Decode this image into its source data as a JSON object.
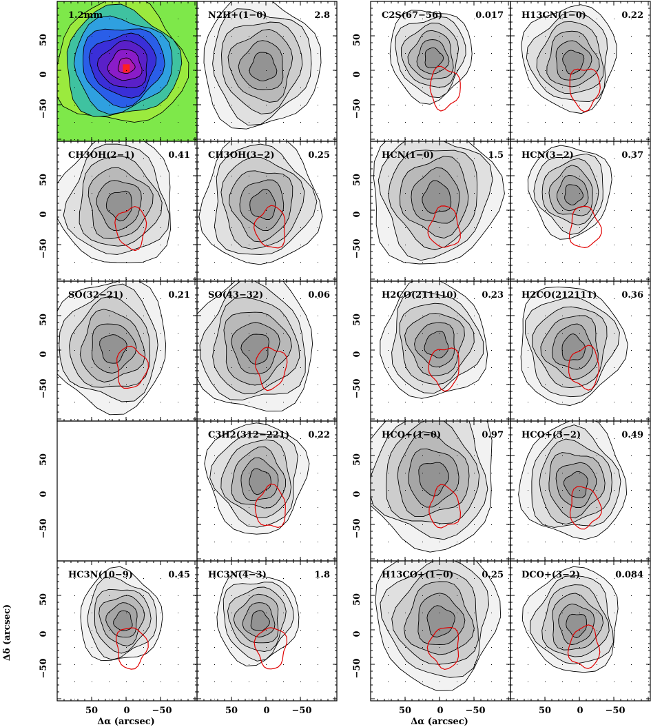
{
  "axes": {
    "xlabel": "Δα (arcsec)",
    "ylabel": "Δδ (arcsec)",
    "xticks": [
      "50",
      "0",
      "−50"
    ],
    "yticks": [
      "50",
      "0",
      "−50"
    ]
  },
  "colors": {
    "contour": "#000000",
    "overlay": "#e00000"
  },
  "panels": [
    {
      "id": "mm12",
      "title": "1.2mm",
      "peak": "",
      "col": 0,
      "row": 0,
      "style": "color",
      "scale": 1.0,
      "dx": -10,
      "dy": -12,
      "overlay": false
    },
    {
      "id": "n2h",
      "title": "N2H+(1−0)",
      "peak": "2.8",
      "col": 1,
      "row": 0,
      "style": "gray",
      "scale": 1.0,
      "dx": -10,
      "dy": -12,
      "overlay": false
    },
    {
      "id": "c2s",
      "title": "C2S(67−56)",
      "peak": "0.017",
      "col": 2,
      "row": 0,
      "style": "gray",
      "scale": 0.7,
      "dx": -15,
      "dy": -25,
      "overlay": true
    },
    {
      "id": "h13cn",
      "title": "H13CN(1−0)",
      "peak": "0.22",
      "col": 3,
      "row": 0,
      "style": "gray",
      "scale": 0.8,
      "dx": -15,
      "dy": -20,
      "overlay": true
    },
    {
      "id": "ch3oh21",
      "title": "CH3OH(2−1)",
      "peak": "0.41",
      "col": 0,
      "row": 1,
      "style": "gray",
      "scale": 1.0,
      "dx": -15,
      "dy": -15,
      "overlay": true
    },
    {
      "id": "ch3oh32",
      "title": "CH3OH(3−2)",
      "peak": "0.25",
      "col": 1,
      "row": 1,
      "style": "gray",
      "scale": 1.0,
      "dx": -10,
      "dy": -15,
      "overlay": true
    },
    {
      "id": "hcn10",
      "title": "HCN(1−0)",
      "peak": "1.5",
      "col": 2,
      "row": 1,
      "style": "gray",
      "scale": 1.1,
      "dx": -10,
      "dy": -25,
      "overlay": true
    },
    {
      "id": "hcn32",
      "title": "HCN(3−2)",
      "peak": "0.37",
      "col": 3,
      "row": 1,
      "style": "gray",
      "scale": 0.7,
      "dx": -15,
      "dy": -30,
      "overlay": true
    },
    {
      "id": "so3221",
      "title": "SO(32−21)",
      "peak": "0.21",
      "col": 0,
      "row": 2,
      "style": "gray",
      "scale": 1.0,
      "dx": -25,
      "dy": -10,
      "overlay": true
    },
    {
      "id": "so4332",
      "title": "SO(43−32)",
      "peak": "0.06",
      "col": 1,
      "row": 2,
      "style": "gray",
      "scale": 1.05,
      "dx": -20,
      "dy": -10,
      "overlay": true
    },
    {
      "id": "h2co211",
      "title": "H2CO(211110)",
      "peak": "0.23",
      "col": 2,
      "row": 2,
      "style": "gray",
      "scale": 0.9,
      "dx": -10,
      "dy": -15,
      "overlay": true
    },
    {
      "id": "h2co212",
      "title": "H2CO(212111)",
      "peak": "0.36",
      "col": 3,
      "row": 2,
      "style": "gray",
      "scale": 0.9,
      "dx": -15,
      "dy": -10,
      "overlay": true
    },
    {
      "id": "c3h2",
      "title": "C3H2(312−221)",
      "peak": "0.22",
      "col": 1,
      "row": 3,
      "style": "gray",
      "scale": 0.85,
      "dx": -15,
      "dy": -20,
      "overlay": true
    },
    {
      "id": "hco10",
      "title": "HCO+(1−0)",
      "peak": "0.97",
      "col": 2,
      "row": 3,
      "style": "gray",
      "scale": 1.15,
      "dx": -15,
      "dy": -25,
      "overlay": true
    },
    {
      "id": "hco32",
      "title": "HCO+(3−2)",
      "peak": "0.49",
      "col": 3,
      "row": 3,
      "style": "gray",
      "scale": 0.9,
      "dx": -10,
      "dy": -15,
      "overlay": true
    },
    {
      "id": "hc3n109",
      "title": "HC3N(10−9)",
      "peak": "0.45",
      "col": 0,
      "row": 4,
      "style": "gray",
      "scale": 0.7,
      "dx": -10,
      "dy": -20,
      "overlay": true
    },
    {
      "id": "hc3n43",
      "title": "HC3N(4−3)",
      "peak": "1.8",
      "col": 1,
      "row": 4,
      "style": "gray",
      "scale": 0.7,
      "dx": -15,
      "dy": -20,
      "overlay": true
    },
    {
      "id": "h13co",
      "title": "H13CO+(1−0)",
      "peak": "0.25",
      "col": 2,
      "row": 4,
      "style": "gray",
      "scale": 1.05,
      "dx": -5,
      "dy": -20,
      "overlay": true
    },
    {
      "id": "dco32",
      "title": "DCO+(3−2)",
      "peak": "0.084",
      "col": 3,
      "row": 4,
      "style": "gray",
      "scale": 0.8,
      "dx": -10,
      "dy": -15,
      "overlay": true
    }
  ]
}
